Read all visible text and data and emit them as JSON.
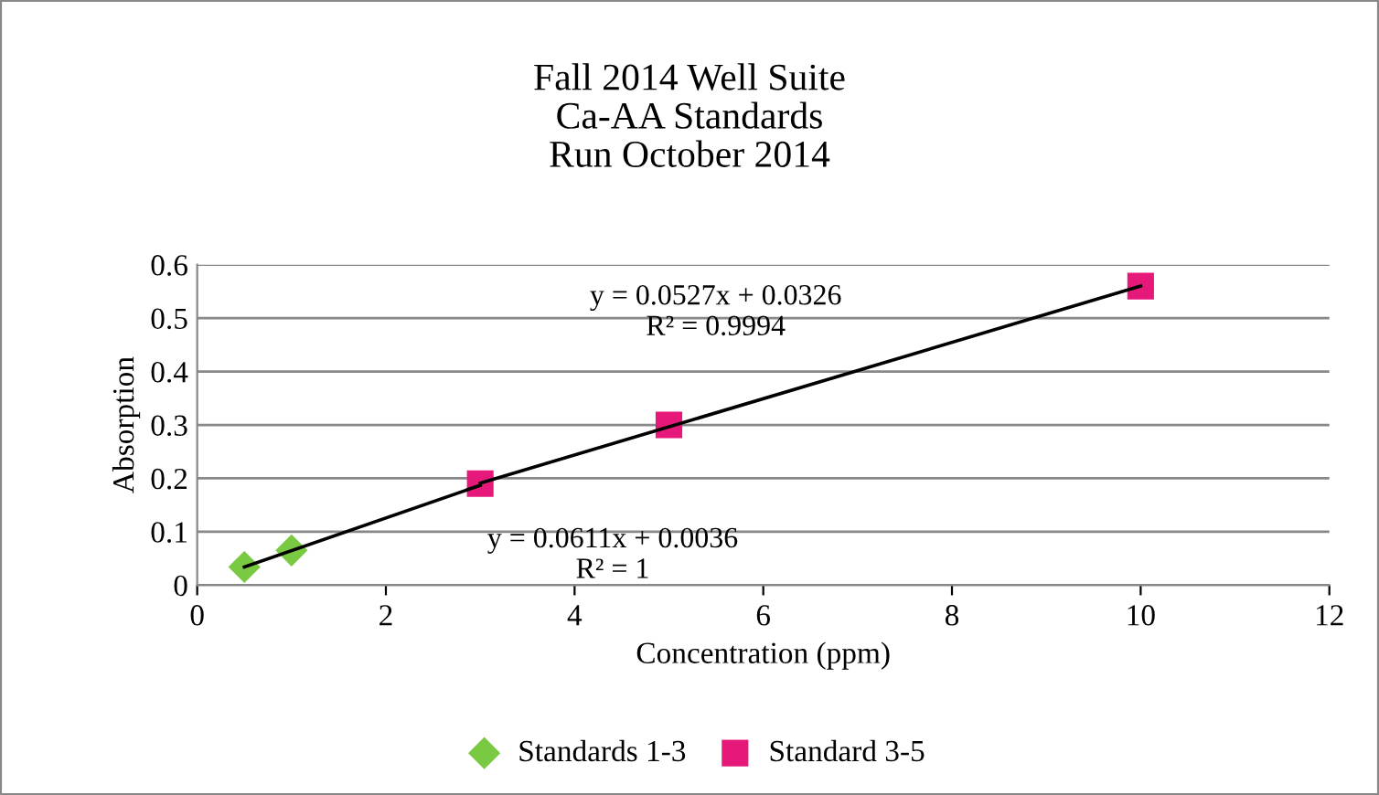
{
  "chart_data": {
    "type": "scatter",
    "title": "Fall 2014 Well Suite\nCa-AA Standards\nRun October 2014",
    "xlabel": "Concentration (ppm)",
    "ylabel": "Absorption",
    "series": [
      {
        "name": "Standards 1-3",
        "color": "#7ac943",
        "marker": "diamond",
        "x": [
          0.5,
          1
        ],
        "values": [
          0.034,
          0.065
        ]
      },
      {
        "name": "Standard 3-5",
        "color": "#e6197b",
        "marker": "square",
        "x": [
          3,
          5,
          10
        ],
        "values": [
          0.19,
          0.3,
          0.56
        ]
      },
      {
        "type": "line",
        "color": "#000000",
        "x": [
          0.5,
          3
        ],
        "values": [
          0.034,
          0.187
        ]
      },
      {
        "type": "line",
        "color": "#000000",
        "x": [
          3,
          10
        ],
        "values": [
          0.191,
          0.56
        ]
      }
    ],
    "annotations": [
      "y = 0.0527x + 0.0326\nR² = 0.9994",
      "y = 0.0611x + 0.0036\nR² = 1"
    ],
    "xlim": [
      0,
      12
    ],
    "xticks": [
      0,
      2,
      4,
      6,
      8,
      10,
      12
    ],
    "ylim": [
      0,
      0.6
    ],
    "yticks": [
      0,
      0.1,
      0.2,
      0.3,
      0.4,
      0.5,
      0.6
    ],
    "grid": "y",
    "legend": "bottom",
    "line_style": "solid"
  }
}
